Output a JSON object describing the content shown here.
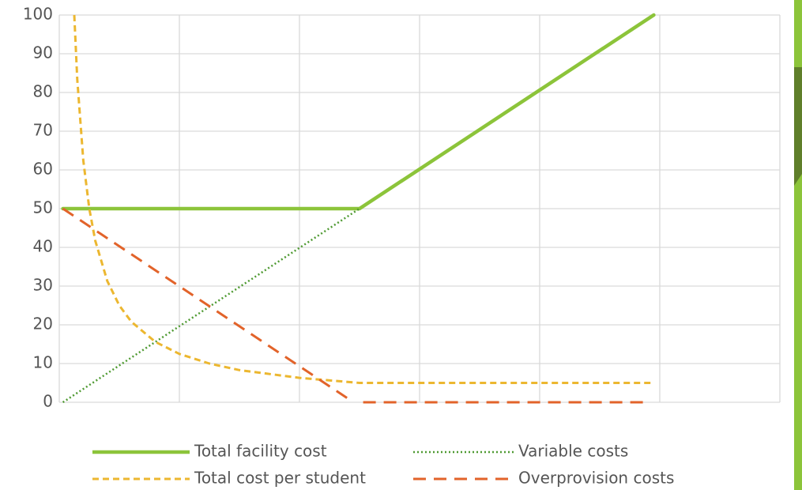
{
  "chart_data": {
    "type": "line",
    "xlim": [
      0,
      600
    ],
    "xticks": [
      0,
      100,
      200,
      300,
      400,
      500,
      600
    ],
    "ylim": [
      0,
      100
    ],
    "yticks": [
      0,
      10,
      20,
      30,
      40,
      50,
      60,
      70,
      80,
      90,
      100
    ],
    "grid": true,
    "series": [
      {
        "name": "Total facility cost",
        "color": "#8cc43a",
        "dash": "solid",
        "width": 4.5,
        "x": [
          3,
          250,
          495
        ],
        "values": [
          50,
          50,
          100
        ]
      },
      {
        "name": "Variable costs",
        "color": "#4f9a32",
        "dash": "dotted",
        "width": 2.5,
        "x": [
          3,
          250
        ],
        "values": [
          0,
          50
        ]
      },
      {
        "name": "Total cost per student",
        "color": "#ecb730",
        "dash": "short-dash",
        "width": 3,
        "x": [
          12.5,
          15,
          20,
          25,
          30,
          40,
          50,
          60,
          80,
          100,
          125,
          150,
          200,
          250,
          300,
          400,
          495
        ],
        "values": [
          100,
          83.3,
          62.5,
          50,
          41.7,
          31.3,
          25,
          20.8,
          15.6,
          12.5,
          10,
          8.3,
          6.3,
          5,
          5,
          5,
          5
        ]
      },
      {
        "name": "Overprovision costs",
        "color": "#e2632a",
        "dash": "long-dash",
        "width": 3,
        "x": [
          3,
          245,
          null,
          253,
          490
        ],
        "values": [
          50,
          0,
          null,
          0,
          0
        ]
      }
    ]
  }
}
